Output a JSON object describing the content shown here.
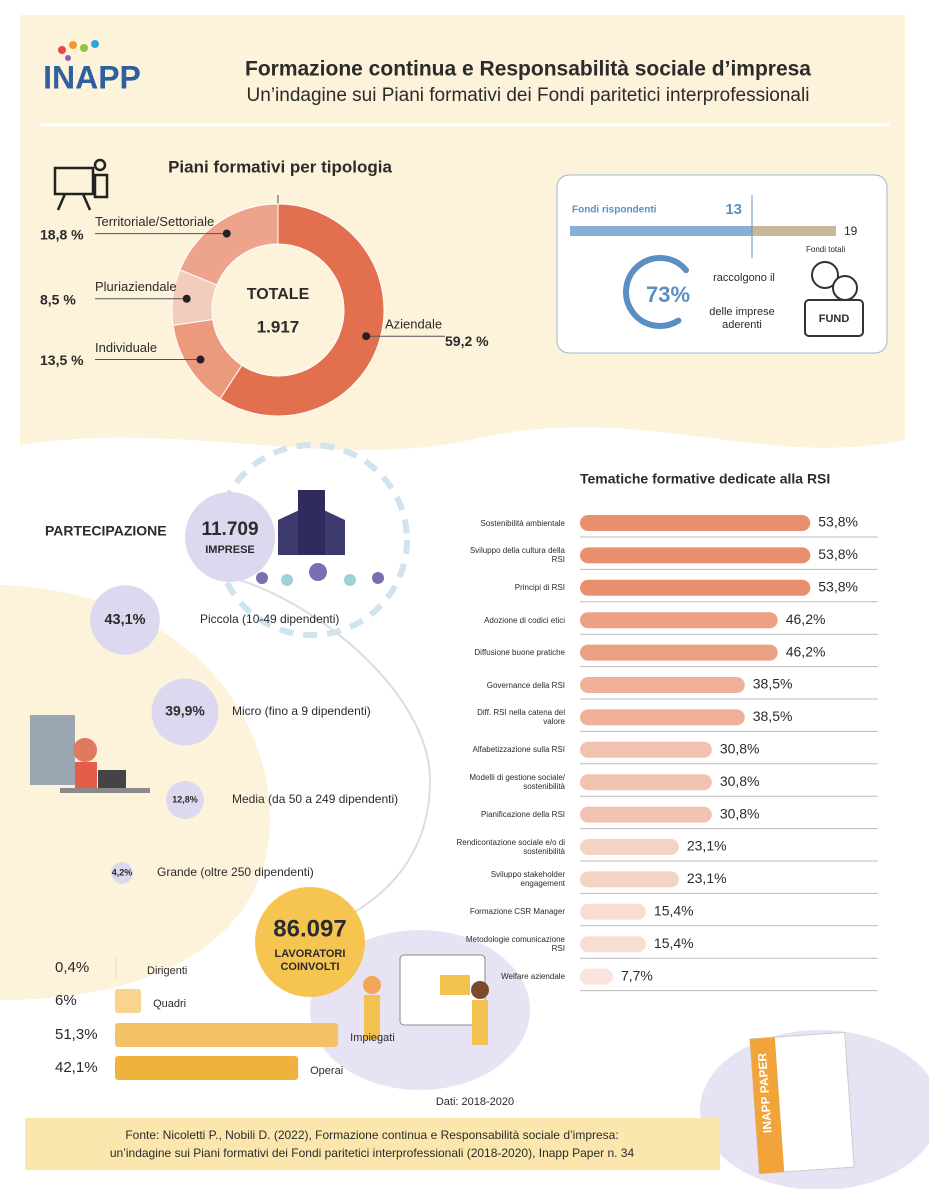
{
  "header": {
    "logo": "INAPP",
    "title": "Formazione continua e Responsabilità sociale d’impresa",
    "subtitle": "Un’indagine sui Piani formativi dei Fondi paritetici interprofessionali"
  },
  "chart_data": [
    {
      "type": "donut",
      "title": "Piani formativi per tipologia",
      "center_title": "TOTALE",
      "center_value": "1.917",
      "categories": [
        "Aziendale",
        "Individuale",
        "Pluriaziendale",
        "Territoriale/Settoriale"
      ],
      "values": [
        59.2,
        13.5,
        8.5,
        18.8
      ],
      "value_labels": [
        "59,2 %",
        "13,5 %",
        "8,5 %",
        "18,8 %"
      ],
      "colors": [
        "#e2704f",
        "#eb9a7d",
        "#f2cdbd",
        "#eea48c"
      ]
    },
    {
      "type": "fund",
      "categories": [
        "Fondi rispondenti",
        "Fondi totali"
      ],
      "values": [
        13,
        19
      ],
      "colors": [
        "#86b0d6",
        "#c9b79a"
      ]
    },
    {
      "type": "gauge",
      "values": [
        73
      ],
      "value_labels": [
        "73%"
      ],
      "text": [
        "raccolgono il",
        "delle imprese",
        "aderenti"
      ],
      "color": "#5b8fc4"
    },
    {
      "type": "bubble",
      "title": "PARTECIPAZIONE",
      "total": "11.709",
      "total_label": "IMPRESE",
      "categories": [
        "Piccola (10-49 dipendenti)",
        "Micro (fino a 9 dipendenti)",
        "Media (da 50 a 249 dipendenti)",
        "Grande (oltre 250 dipendenti)"
      ],
      "values": [
        43.1,
        39.9,
        12.8,
        4.2
      ],
      "value_labels": [
        "43,1%",
        "39,9%",
        "12,8%",
        "4,2%"
      ],
      "color": "#dcd8f0"
    },
    {
      "type": "workers",
      "title": "LAVORATORI COINVOLTI",
      "total": "86.097",
      "categories": [
        "Dirigenti",
        "Quadri",
        "Impiegati",
        "Operai"
      ],
      "values": [
        0.4,
        6,
        51.3,
        42.1
      ],
      "value_labels": [
        "0,4%",
        "6%",
        "51,3%",
        "42,1%"
      ],
      "colors": [
        "#fbe2b4",
        "#f8d48e",
        "#f4c266",
        "#efb23c"
      ]
    },
    {
      "type": "hbar",
      "title": "Tematiche formative dedicate alla RSI",
      "categories": [
        "Sostenibilità ambientale",
        "Sviluppo della cultura della RSI",
        "Principi di RSI",
        "Adozione di codici etici",
        "Diffusione buone pratiche",
        "Governance della RSI",
        "Diff. RSI nella catena del valore",
        "Alfabetizzazione sulla RSI",
        "Modelli di gestione sociale/ sostenibilità",
        "Pianificazione della RSI",
        "Rendicontazione sociale e/o di sostenibilità",
        "Sviluppo stakeholder engagement",
        "Formazione CSR Manager",
        "Metodologie comunicazione RSI",
        "Welfare aziendale"
      ],
      "values": [
        53.8,
        53.8,
        53.8,
        46.2,
        46.2,
        38.5,
        38.5,
        30.8,
        30.8,
        30.8,
        23.1,
        23.1,
        15.4,
        15.4,
        7.7
      ],
      "value_labels": [
        "53,8%",
        "53,8%",
        "53,8%",
        "46,2%",
        "46,2%",
        "38,5%",
        "38,5%",
        "30,8%",
        "30,8%",
        "30,8%",
        "23,1%",
        "23,1%",
        "15,4%",
        "15,4%",
        "7,7%"
      ],
      "colors": [
        "#e8906e",
        "#e8906e",
        "#e8906e",
        "#eca084",
        "#eca084",
        "#efb19a",
        "#efb19a",
        "#f2c2b0",
        "#f2c2b0",
        "#f2c2b0",
        "#f5d2c4",
        "#f5d2c4",
        "#f8ddd2",
        "#f8ddd2",
        "#fae5dd"
      ]
    }
  ],
  "footer": {
    "date": "Dati: 2018-2020",
    "source": [
      "Fonte: Nicoletti P., Nobili D. (2022), Formazione continua e Responsabilità sociale d’impresa:",
      "un’indagine sui Piani formativi dei Fondi paritetici interprofessionali (2018-2020), Inapp Paper n. 34"
    ],
    "paper": "INAPP PAPER"
  }
}
